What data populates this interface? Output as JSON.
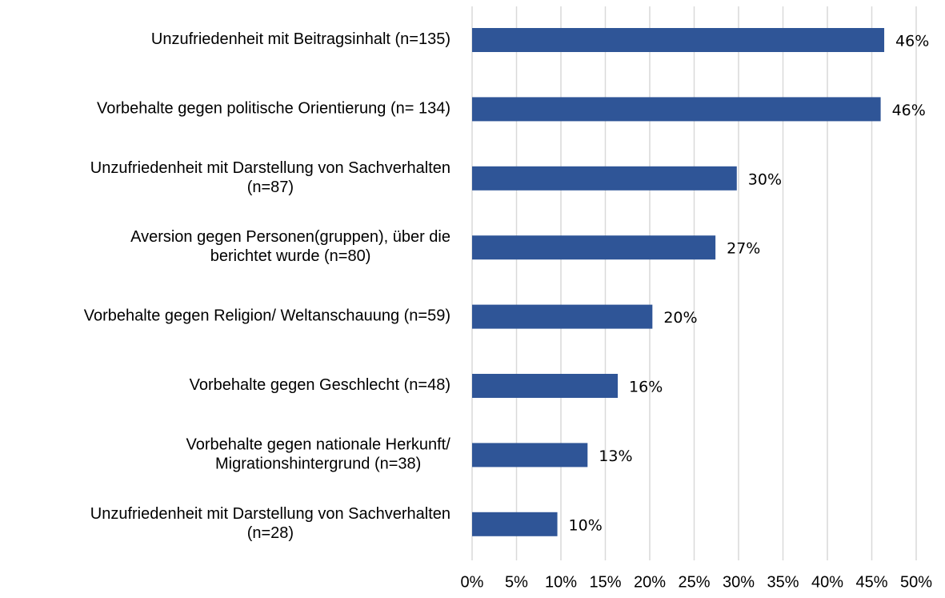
{
  "chart_data": {
    "type": "barh",
    "categories": [
      "Unzufriedenheit mit Beitragsinhalt (n=135)",
      "Vorbehalte gegen politische Orientierung (n= 134)",
      "Unzufriedenheit mit Darstellung von Sachverhalten\n(n=87)",
      "Aversion gegen Personen(gruppen), über die\nberichtet wurde (n=80)",
      "Vorbehalte gegen Religion/ Weltanschauung (n=59)",
      "Vorbehalte gegen Geschlecht (n=48)",
      "Vorbehalte gegen nationale Herkunft/\nMigrationshintergrund (n=38)",
      "Unzufriedenheit mit Darstellung von Sachverhalten\n(n=28)"
    ],
    "values": [
      46.4,
      46.0,
      29.8,
      27.4,
      20.3,
      16.4,
      13.0,
      9.6
    ],
    "value_labels": [
      "46%",
      "46%",
      "30%",
      "27%",
      "20%",
      "16%",
      "13%",
      "10%"
    ],
    "color": "#2f5597",
    "xlim": [
      0,
      50
    ],
    "xticks": [
      {
        "value": 0,
        "label": "0%"
      },
      {
        "value": 5,
        "label": "5%"
      },
      {
        "value": 10,
        "label": "10%"
      },
      {
        "value": 15,
        "label": "15%"
      },
      {
        "value": 20,
        "label": "20%"
      },
      {
        "value": 25,
        "label": "25%"
      },
      {
        "value": 30,
        "label": "30%"
      },
      {
        "value": 35,
        "label": "35%"
      },
      {
        "value": 40,
        "label": "40%"
      },
      {
        "value": 45,
        "label": "45%"
      },
      {
        "value": 50,
        "label": "50%"
      }
    ],
    "grid": true
  }
}
